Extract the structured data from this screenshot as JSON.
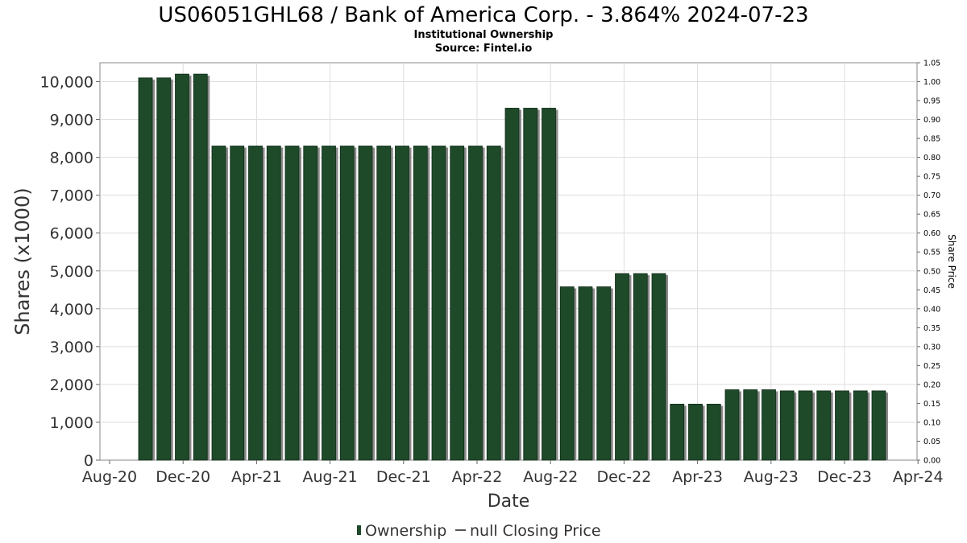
{
  "chart_data": {
    "type": "bar",
    "title": "US06051GHL68 / Bank of America Corp. - 3.864% 2024-07-23",
    "subtitle_1": "Institutional Ownership",
    "subtitle_2": "Source: Fintel.io",
    "xlabel": "Date",
    "ylabel": "Shares (x1000)",
    "y2label": "Share Price",
    "ylim": [
      0,
      10500
    ],
    "y2lim": [
      0,
      1.05
    ],
    "yticks": [
      "0",
      "1,000",
      "2,000",
      "3,000",
      "4,000",
      "5,000",
      "6,000",
      "7,000",
      "8,000",
      "9,000",
      "10,000"
    ],
    "y2ticks": [
      "0.00",
      "0.05",
      "0.10",
      "0.15",
      "0.20",
      "0.25",
      "0.30",
      "0.35",
      "0.40",
      "0.45",
      "0.50",
      "0.55",
      "0.60",
      "0.65",
      "0.70",
      "0.75",
      "0.80",
      "0.85",
      "0.90",
      "0.95",
      "1.00",
      "1.05"
    ],
    "xticks": [
      "Aug-20",
      "Dec-20",
      "Apr-21",
      "Aug-21",
      "Dec-21",
      "Apr-22",
      "Aug-22",
      "Dec-22",
      "Apr-23",
      "Aug-23",
      "Dec-23",
      "Apr-24"
    ],
    "grid": true,
    "legend_position": "bottom",
    "legend": [
      {
        "label": "Ownership",
        "color": "#1f4a2a"
      },
      {
        "label": "null Closing Price",
        "color": "#555555"
      }
    ],
    "series": [
      {
        "name": "Ownership",
        "color": "#1f4a2a",
        "values": [
          10100,
          10100,
          10200,
          10200,
          8300,
          8300,
          8300,
          8300,
          8300,
          8300,
          8300,
          8300,
          8300,
          8300,
          8300,
          8300,
          8300,
          8300,
          8300,
          8300,
          9300,
          9300,
          9300,
          4580,
          4580,
          4580,
          4930,
          4930,
          4930,
          1480,
          1480,
          1480,
          1860,
          1860,
          1860,
          1830,
          1830,
          1830,
          1830,
          1830,
          1830
        ]
      }
    ]
  }
}
